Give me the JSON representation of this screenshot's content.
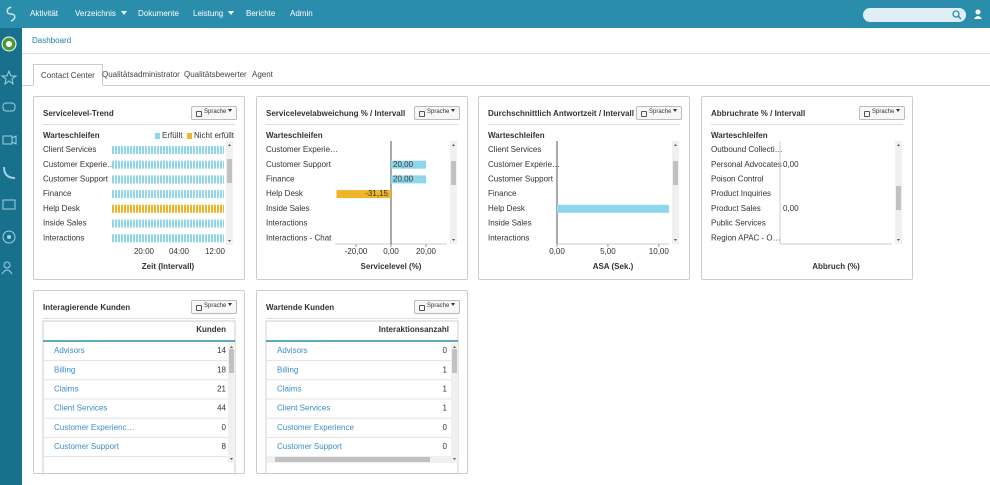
{
  "nav": [
    {
      "label": "Aktivität",
      "menu": false
    },
    {
      "label": "Verzeichnis",
      "menu": true
    },
    {
      "label": "Dokumente",
      "menu": false
    },
    {
      "label": "Leistung",
      "menu": true
    },
    {
      "label": "Berichte",
      "menu": false
    },
    {
      "label": "Admin",
      "menu": false
    }
  ],
  "breadcrumb": "Dashboard",
  "tabs": [
    "Contact Center",
    "Qualitätsadministrator",
    "Qualitätsbewerter",
    "Agent"
  ],
  "widgets": [
    {
      "type": "trend",
      "title": "Servicelevel-Trend",
      "button": "Sprache",
      "row_header": "Warteschleifen",
      "legend": [
        {
          "name": "Erfüllt",
          "color": "#8fd6ea"
        },
        {
          "name": "Nicht erfüllt",
          "color": "#f0b429"
        }
      ],
      "rows": [
        {
          "name": "Client Services",
          "met": true
        },
        {
          "name": "Customer Experie…",
          "met": true
        },
        {
          "name": "Customer Support",
          "met": true
        },
        {
          "name": "Finance",
          "met": true
        },
        {
          "name": "Help Desk",
          "met": false
        },
        {
          "name": "Inside Sales",
          "met": true
        },
        {
          "name": "Interactions",
          "met": true
        }
      ],
      "xticks": [
        "20:00",
        "04:00",
        "12:00"
      ],
      "xlabel": "Zeit (Intervall)"
    },
    {
      "type": "bar",
      "title": "Servicelevelabweichung % / Intervall",
      "button": "Sprache",
      "row_header": "Warteschleifen",
      "positive_color": "#8fd6ea",
      "negative_color": "#f0b429",
      "rows": [
        {
          "name": "Customer Experie…",
          "value": null
        },
        {
          "name": "Customer Support",
          "value": 20,
          "label": "20,00"
        },
        {
          "name": "Finance",
          "value": 20,
          "label": "20,00"
        },
        {
          "name": "Help Desk",
          "value": -31.15,
          "label": "-31,15"
        },
        {
          "name": "Inside Sales",
          "value": null
        },
        {
          "name": "Interactions",
          "value": null
        },
        {
          "name": "Interactions - Chat",
          "value": null
        }
      ],
      "xlim": [
        -32,
        32
      ],
      "xticks": [
        {
          "value": -20,
          "label": "-20,00"
        },
        {
          "value": 0,
          "label": "0,00"
        },
        {
          "value": 20,
          "label": "20,00"
        }
      ],
      "xlabel": "Servicelevel (%)"
    },
    {
      "type": "bar",
      "title": "Durchschnittlich Antwortzeit / Intervall",
      "button": "Sprache",
      "row_header": "Warteschleifen",
      "positive_color": "#8fd6ea",
      "negative_color": "#f0b429",
      "rows": [
        {
          "name": "Client Services",
          "value": 0
        },
        {
          "name": "Customer Experie…",
          "value": null
        },
        {
          "name": "Customer Support",
          "value": 0
        },
        {
          "name": "Finance",
          "value": 0
        },
        {
          "name": "Help Desk",
          "value": 11
        },
        {
          "name": "Inside Sales",
          "value": null
        },
        {
          "name": "Interactions",
          "value": null
        }
      ],
      "xlim": [
        0,
        11
      ],
      "xticks": [
        {
          "value": 0,
          "label": "0,00"
        },
        {
          "value": 5,
          "label": "5,00"
        },
        {
          "value": 10,
          "label": "10,00"
        }
      ],
      "xlabel": "ASA (Sek.)"
    },
    {
      "type": "labels",
      "title": "Abbruchrate % / Intervall",
      "button": "Sprache",
      "row_header": "Warteschleifen",
      "rows": [
        {
          "name": "Outbound Collecti…",
          "value": null
        },
        {
          "name": "Personal Advocates",
          "value": "0,00"
        },
        {
          "name": "Poison Control",
          "value": null
        },
        {
          "name": "Product Inquiries",
          "value": null
        },
        {
          "name": "Product Sales",
          "value": "0,00"
        },
        {
          "name": "Public Services",
          "value": null
        },
        {
          "name": "Region APAC - O…",
          "value": null
        }
      ],
      "xlabel": "Abbruch (%)"
    }
  ],
  "tables": [
    {
      "title": "Interagierende Kunden",
      "button": "Sprache",
      "column": "Kunden",
      "rows": [
        {
          "name": "Advisors",
          "value": 14
        },
        {
          "name": "Billing",
          "value": 18
        },
        {
          "name": "Claims",
          "value": 21
        },
        {
          "name": "Client Services",
          "value": 44
        },
        {
          "name": "Customer Experienc…",
          "value": 0
        },
        {
          "name": "Customer Support",
          "value": 8
        }
      ]
    },
    {
      "title": "Wartende Kunden",
      "button": "Sprache",
      "column": "Interaktionsanzahl",
      "rows": [
        {
          "name": "Advisors",
          "value": 0
        },
        {
          "name": "Billing",
          "value": 1
        },
        {
          "name": "Claims",
          "value": 1
        },
        {
          "name": "Client Services",
          "value": 1
        },
        {
          "name": "Customer Experience",
          "value": 0
        },
        {
          "name": "Customer Support",
          "value": 0
        }
      ]
    }
  ]
}
